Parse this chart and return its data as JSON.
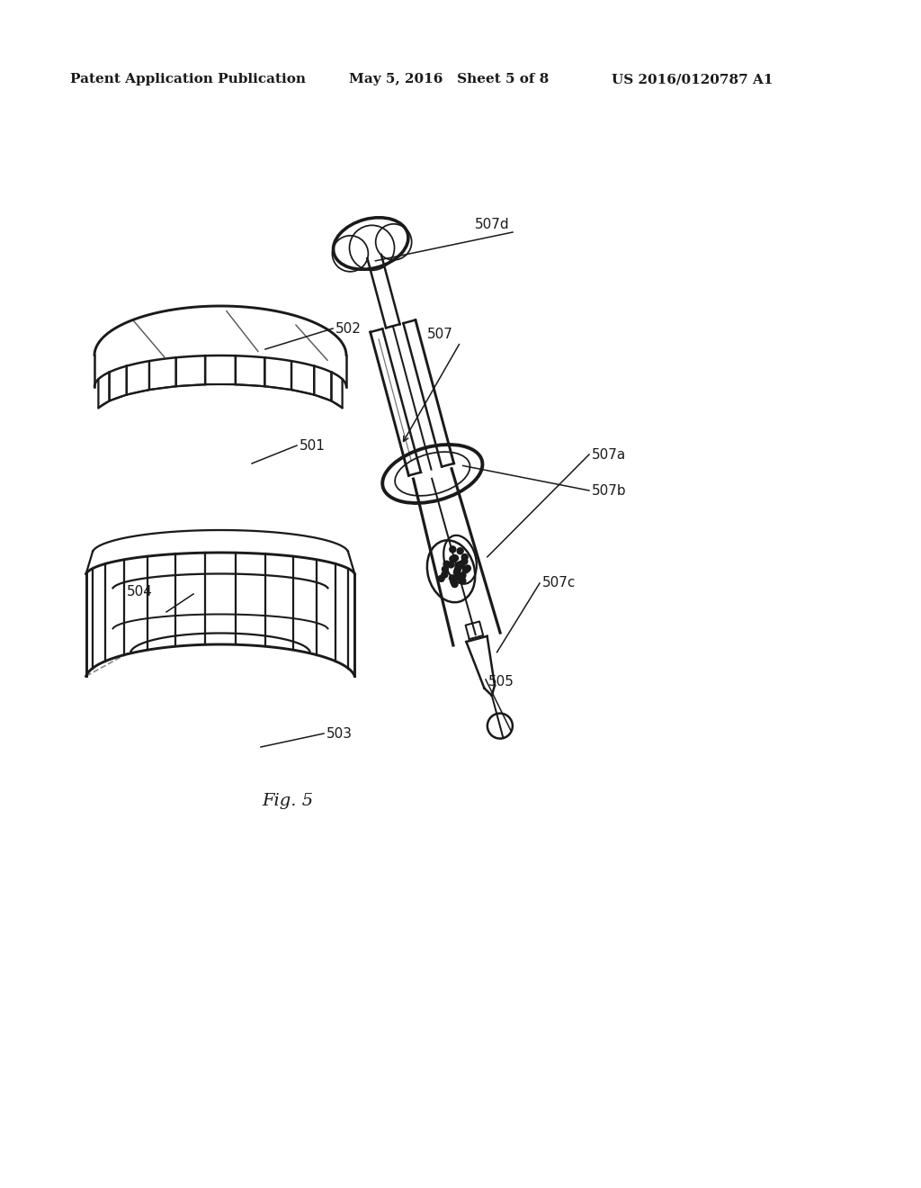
{
  "bg_color": "#ffffff",
  "header_left": "Patent Application Publication",
  "header_mid": "May 5, 2016   Sheet 5 of 8",
  "header_right": "US 2016/0120787 A1",
  "figure_label": "Fig. 5",
  "black": "#1a1a1a",
  "lw": 1.8
}
